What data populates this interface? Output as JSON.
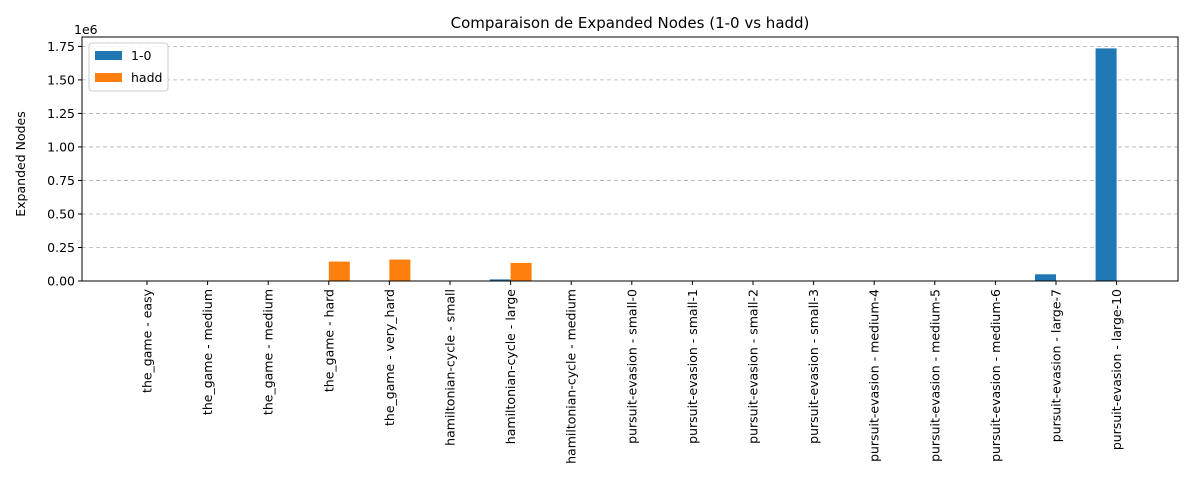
{
  "chart_data": {
    "type": "bar",
    "title": "Comparaison de Expanded Nodes (1-0 vs hadd)",
    "xlabel": "",
    "ylabel": "Expanded Nodes",
    "y_offset_label": "1e6",
    "ylim": [
      0,
      1820000
    ],
    "yticks": [
      0,
      250000,
      500000,
      750000,
      1000000,
      1250000,
      1500000,
      1750000
    ],
    "ytick_labels": [
      "0.00",
      "0.25",
      "0.50",
      "0.75",
      "1.00",
      "1.25",
      "1.50",
      "1.75"
    ],
    "grid": "y-dashed",
    "legend": "top-left",
    "categories": [
      "the_game - easy",
      "the_game - medium",
      "the_game - medium",
      "the_game - hard",
      "the_game - very_hard",
      "hamiltonian-cycle - small",
      "hamiltonian-cycle - large",
      "hamiltonian-cycle - medium",
      "pursuit-evasion - small-0",
      "pursuit-evasion - small-1",
      "pursuit-evasion - small-2",
      "pursuit-evasion - small-3",
      "pursuit-evasion - medium-4",
      "pursuit-evasion - medium-5",
      "pursuit-evasion - medium-6",
      "pursuit-evasion - large-7",
      "pursuit-evasion - large-10"
    ],
    "series": [
      {
        "name": "1-0",
        "color": "#1f77b4",
        "values": [
          100,
          500,
          500,
          2000,
          3000,
          1000,
          12000,
          2000,
          500,
          500,
          500,
          500,
          1000,
          1000,
          1000,
          50000,
          1735000
        ]
      },
      {
        "name": "hadd",
        "color": "#ff7f0e",
        "values": [
          50,
          200,
          200,
          145000,
          160000,
          300,
          135000,
          500,
          100,
          100,
          100,
          100,
          200,
          200,
          200,
          1000,
          3000
        ]
      }
    ]
  }
}
